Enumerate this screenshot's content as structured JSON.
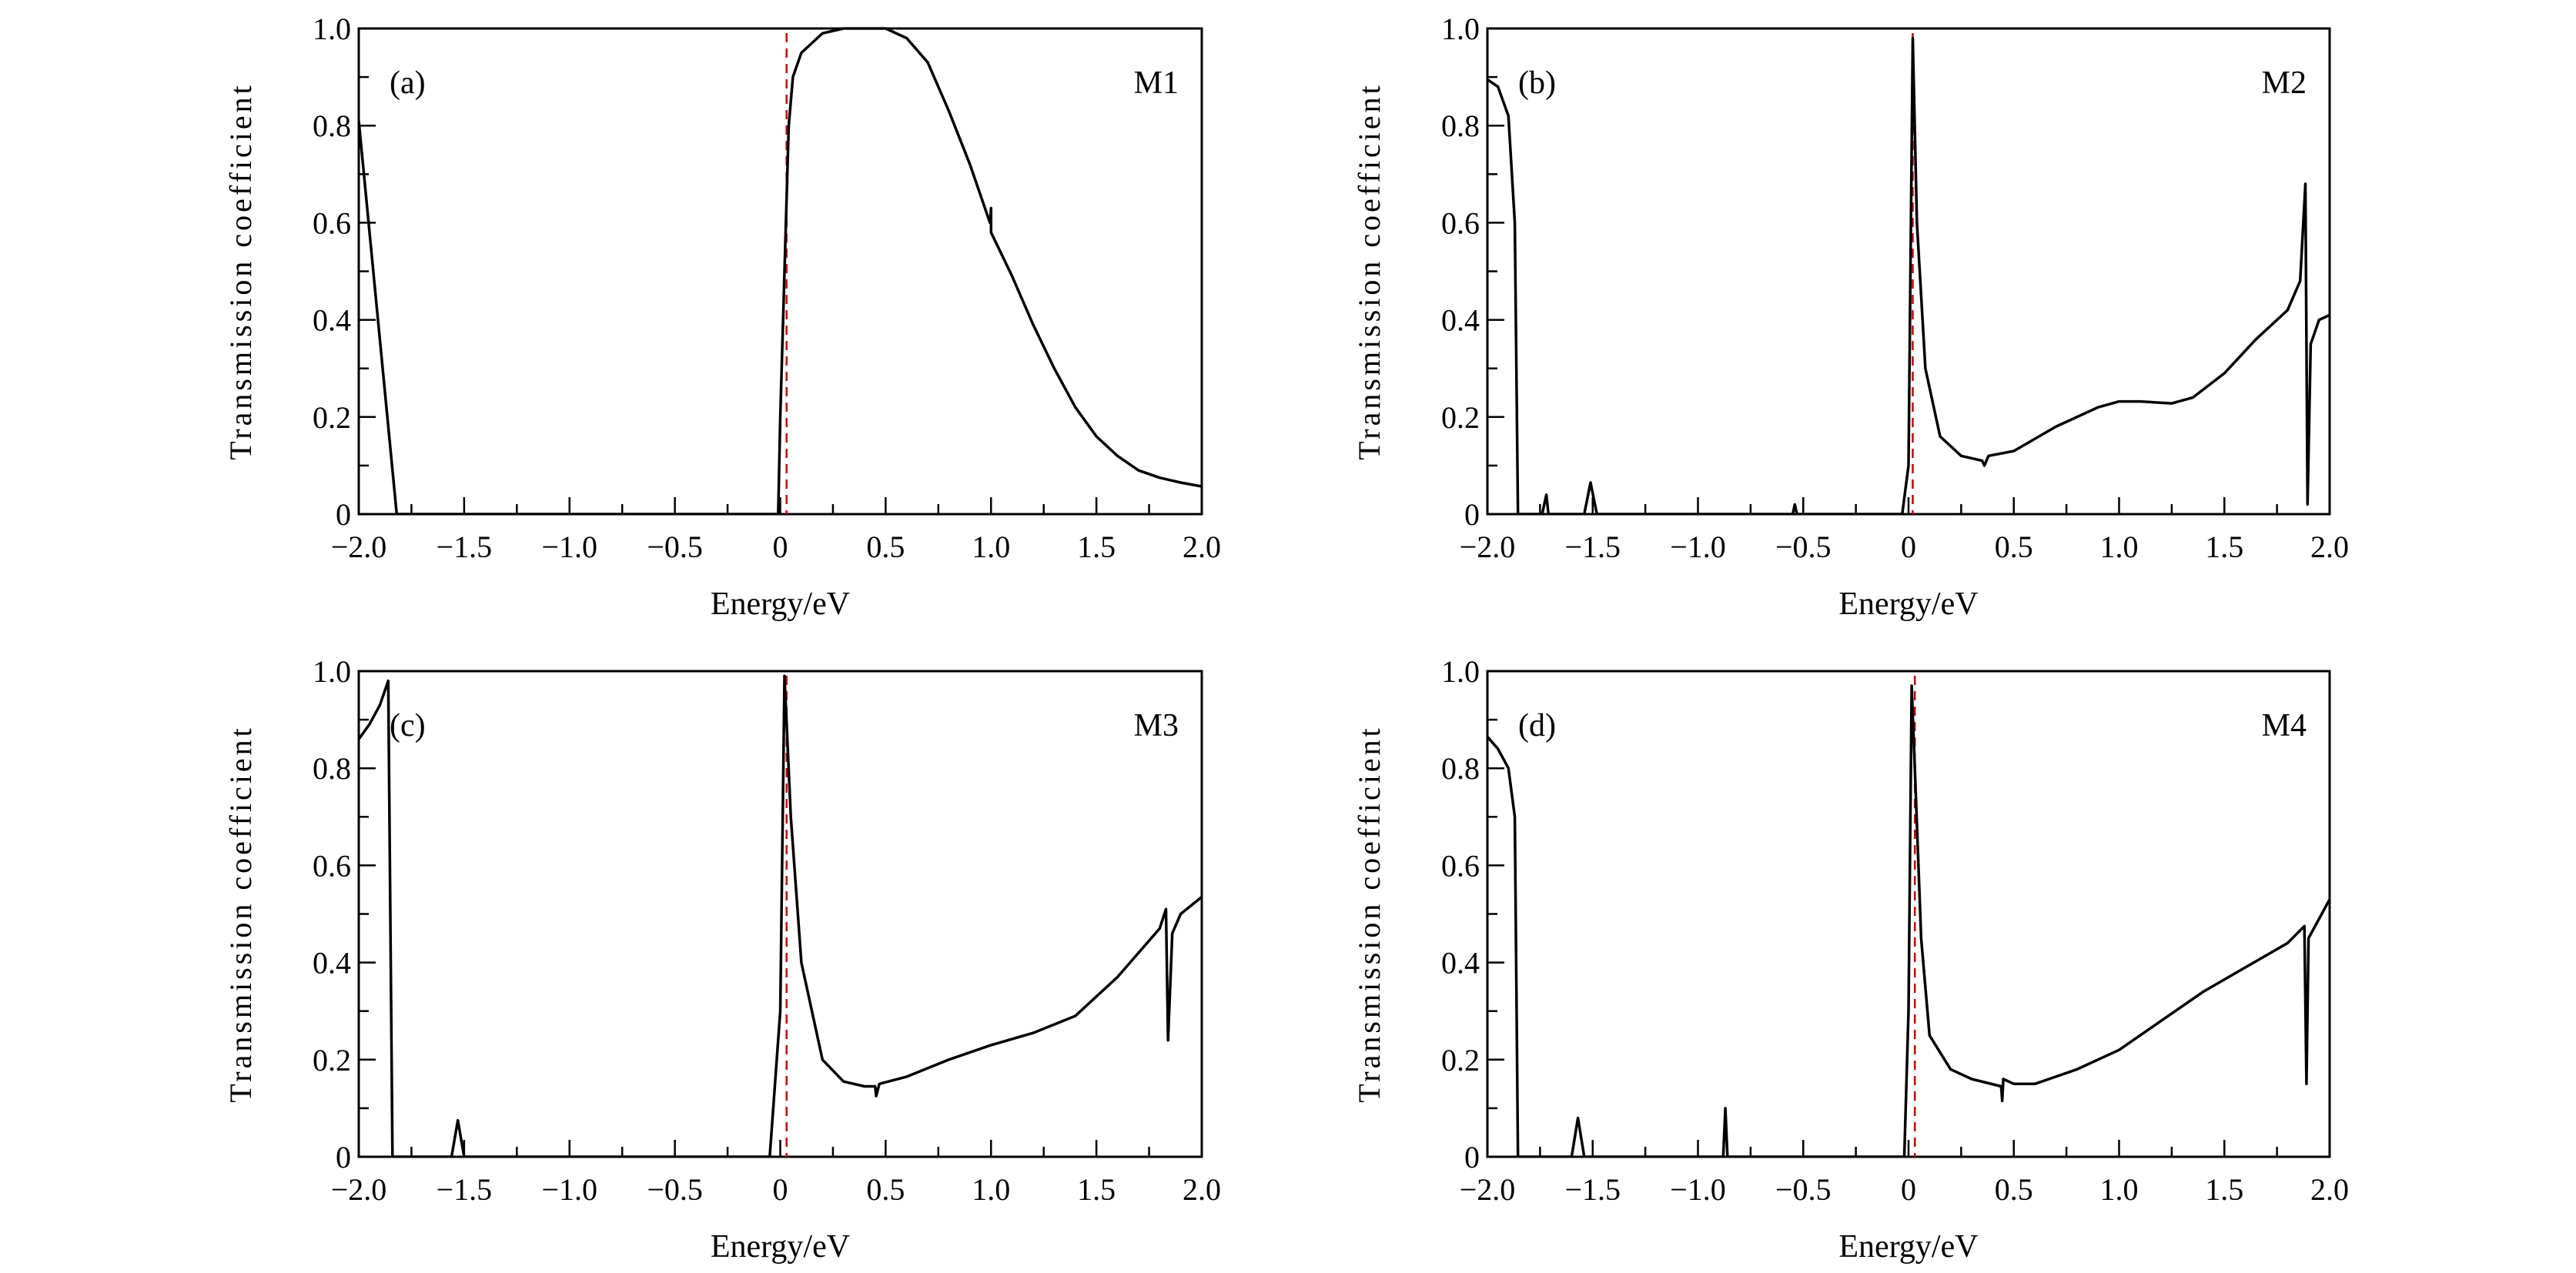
{
  "chart_data": [
    {
      "type": "line",
      "panel_label": "(a)",
      "model_label": "M1",
      "xlabel": "Energy/eV",
      "ylabel": "Transmission coefficient",
      "xlim": [
        -2.0,
        2.0
      ],
      "ylim": [
        0,
        1.0
      ],
      "x_ticks": [
        "−2.0",
        "−1.5",
        "−1.0",
        "−0.5",
        "0",
        "0.5",
        "1.0",
        "1.5",
        "2.0"
      ],
      "y_ticks": [
        "0",
        "0.2",
        "0.4",
        "0.6",
        "0.8",
        "1.0"
      ],
      "fermi_level_line": {
        "x": 0.03,
        "color": "#cc0000",
        "style": "dashed"
      },
      "line_color": "#000000",
      "x": [
        -2.0,
        -1.82,
        -0.01,
        0.0,
        0.02,
        0.04,
        0.06,
        0.1,
        0.2,
        0.3,
        0.5,
        0.6,
        0.7,
        0.8,
        0.9,
        0.995,
        1.0,
        1.0,
        1.1,
        1.2,
        1.3,
        1.4,
        1.5,
        1.6,
        1.7,
        1.8,
        1.9,
        2.0
      ],
      "y": [
        0.81,
        0.0,
        0.0,
        0.2,
        0.5,
        0.8,
        0.9,
        0.95,
        0.99,
        1.0,
        1.0,
        0.98,
        0.93,
        0.83,
        0.72,
        0.6,
        0.63,
        0.58,
        0.49,
        0.39,
        0.3,
        0.22,
        0.16,
        0.12,
        0.09,
        0.075,
        0.065,
        0.057
      ]
    },
    {
      "type": "line",
      "panel_label": "(b)",
      "model_label": "M2",
      "xlabel": "Energy/eV",
      "ylabel": "Transmission coefficient",
      "xlim": [
        -2.0,
        2.0
      ],
      "ylim": [
        0,
        1.0
      ],
      "x_ticks": [
        "−2.0",
        "−1.5",
        "−1.0",
        "−0.5",
        "0",
        "0.5",
        "1.0",
        "1.5",
        "2.0"
      ],
      "y_ticks": [
        "0",
        "0.2",
        "0.4",
        "0.6",
        "0.8",
        "1.0"
      ],
      "fermi_level_line": {
        "x": 0.02,
        "color": "#cc0000",
        "style": "dashed"
      },
      "line_color": "#000000",
      "x": [
        -2.0,
        -1.95,
        -1.9,
        -1.87,
        -1.855,
        -1.74,
        -1.72,
        -1.71,
        -1.54,
        -1.51,
        -1.48,
        -0.55,
        -0.54,
        -0.53,
        -0.03,
        0.0,
        0.02,
        0.04,
        0.08,
        0.15,
        0.25,
        0.35,
        0.36,
        0.38,
        0.5,
        0.7,
        0.9,
        1.0,
        1.1,
        1.25,
        1.35,
        1.5,
        1.65,
        1.8,
        1.86,
        1.885,
        1.895,
        1.91,
        1.95,
        2.0
      ],
      "y": [
        0.895,
        0.88,
        0.82,
        0.6,
        0.0,
        0.0,
        0.04,
        0.0,
        0.0,
        0.065,
        0.0,
        0.0,
        0.02,
        0.0,
        0.0,
        0.1,
        0.98,
        0.6,
        0.3,
        0.16,
        0.12,
        0.11,
        0.1,
        0.12,
        0.13,
        0.18,
        0.22,
        0.232,
        0.232,
        0.228,
        0.24,
        0.29,
        0.36,
        0.42,
        0.48,
        0.68,
        0.02,
        0.35,
        0.4,
        0.41
      ]
    },
    {
      "type": "line",
      "panel_label": "(c)",
      "model_label": "M3",
      "xlabel": "Energy/eV",
      "ylabel": "Transmission coefficient",
      "xlim": [
        -2.0,
        2.0
      ],
      "ylim": [
        0,
        1.0
      ],
      "x_ticks": [
        "−2.0",
        "−1.5",
        "−1.0",
        "−0.5",
        "0",
        "0.5",
        "1.0",
        "1.5",
        "2.0"
      ],
      "y_ticks": [
        "0",
        "0.2",
        "0.4",
        "0.6",
        "0.8",
        "1.0"
      ],
      "fermi_level_line": {
        "x": 0.03,
        "color": "#cc0000",
        "style": "dashed"
      },
      "line_color": "#000000",
      "x": [
        -2.0,
        -1.95,
        -1.9,
        -1.86,
        -1.84,
        -1.56,
        -1.53,
        -1.5,
        -0.05,
        0.0,
        0.02,
        0.05,
        0.1,
        0.2,
        0.3,
        0.4,
        0.45,
        0.455,
        0.47,
        0.6,
        0.8,
        1.0,
        1.2,
        1.4,
        1.6,
        1.8,
        1.83,
        1.84,
        1.86,
        1.9,
        2.0
      ],
      "y": [
        0.86,
        0.89,
        0.93,
        0.98,
        0.0,
        0.0,
        0.075,
        0.0,
        0.0,
        0.3,
        0.99,
        0.7,
        0.4,
        0.2,
        0.155,
        0.145,
        0.145,
        0.125,
        0.15,
        0.165,
        0.2,
        0.23,
        0.255,
        0.29,
        0.37,
        0.47,
        0.51,
        0.24,
        0.46,
        0.5,
        0.535
      ]
    },
    {
      "type": "line",
      "panel_label": "(d)",
      "model_label": "M4",
      "xlabel": "Energy/eV",
      "ylabel": "Transmission coefficient",
      "xlim": [
        -2.0,
        2.0
      ],
      "ylim": [
        0,
        1.0
      ],
      "x_ticks": [
        "−2.0",
        "−1.5",
        "−1.0",
        "−0.5",
        "0",
        "0.5",
        "1.0",
        "1.5",
        "2.0"
      ],
      "y_ticks": [
        "0",
        "0.2",
        "0.4",
        "0.6",
        "0.8",
        "1.0"
      ],
      "fermi_level_line": {
        "x": 0.03,
        "color": "#cc0000",
        "style": "dashed"
      },
      "line_color": "#000000",
      "x": [
        -2.0,
        -1.95,
        -1.9,
        -1.87,
        -1.855,
        -1.6,
        -1.57,
        -1.54,
        -0.88,
        -0.87,
        -0.86,
        -0.02,
        0.0,
        0.015,
        0.03,
        0.06,
        0.1,
        0.2,
        0.3,
        0.44,
        0.445,
        0.45,
        0.5,
        0.6,
        0.8,
        1.0,
        1.2,
        1.4,
        1.6,
        1.8,
        1.88,
        1.89,
        1.9,
        2.0
      ],
      "y": [
        0.865,
        0.84,
        0.8,
        0.7,
        0.0,
        0.0,
        0.08,
        0.0,
        0.0,
        0.1,
        0.0,
        0.0,
        0.3,
        0.97,
        0.8,
        0.45,
        0.25,
        0.18,
        0.16,
        0.145,
        0.115,
        0.16,
        0.15,
        0.15,
        0.18,
        0.22,
        0.28,
        0.34,
        0.39,
        0.44,
        0.475,
        0.15,
        0.45,
        0.53
      ]
    }
  ]
}
